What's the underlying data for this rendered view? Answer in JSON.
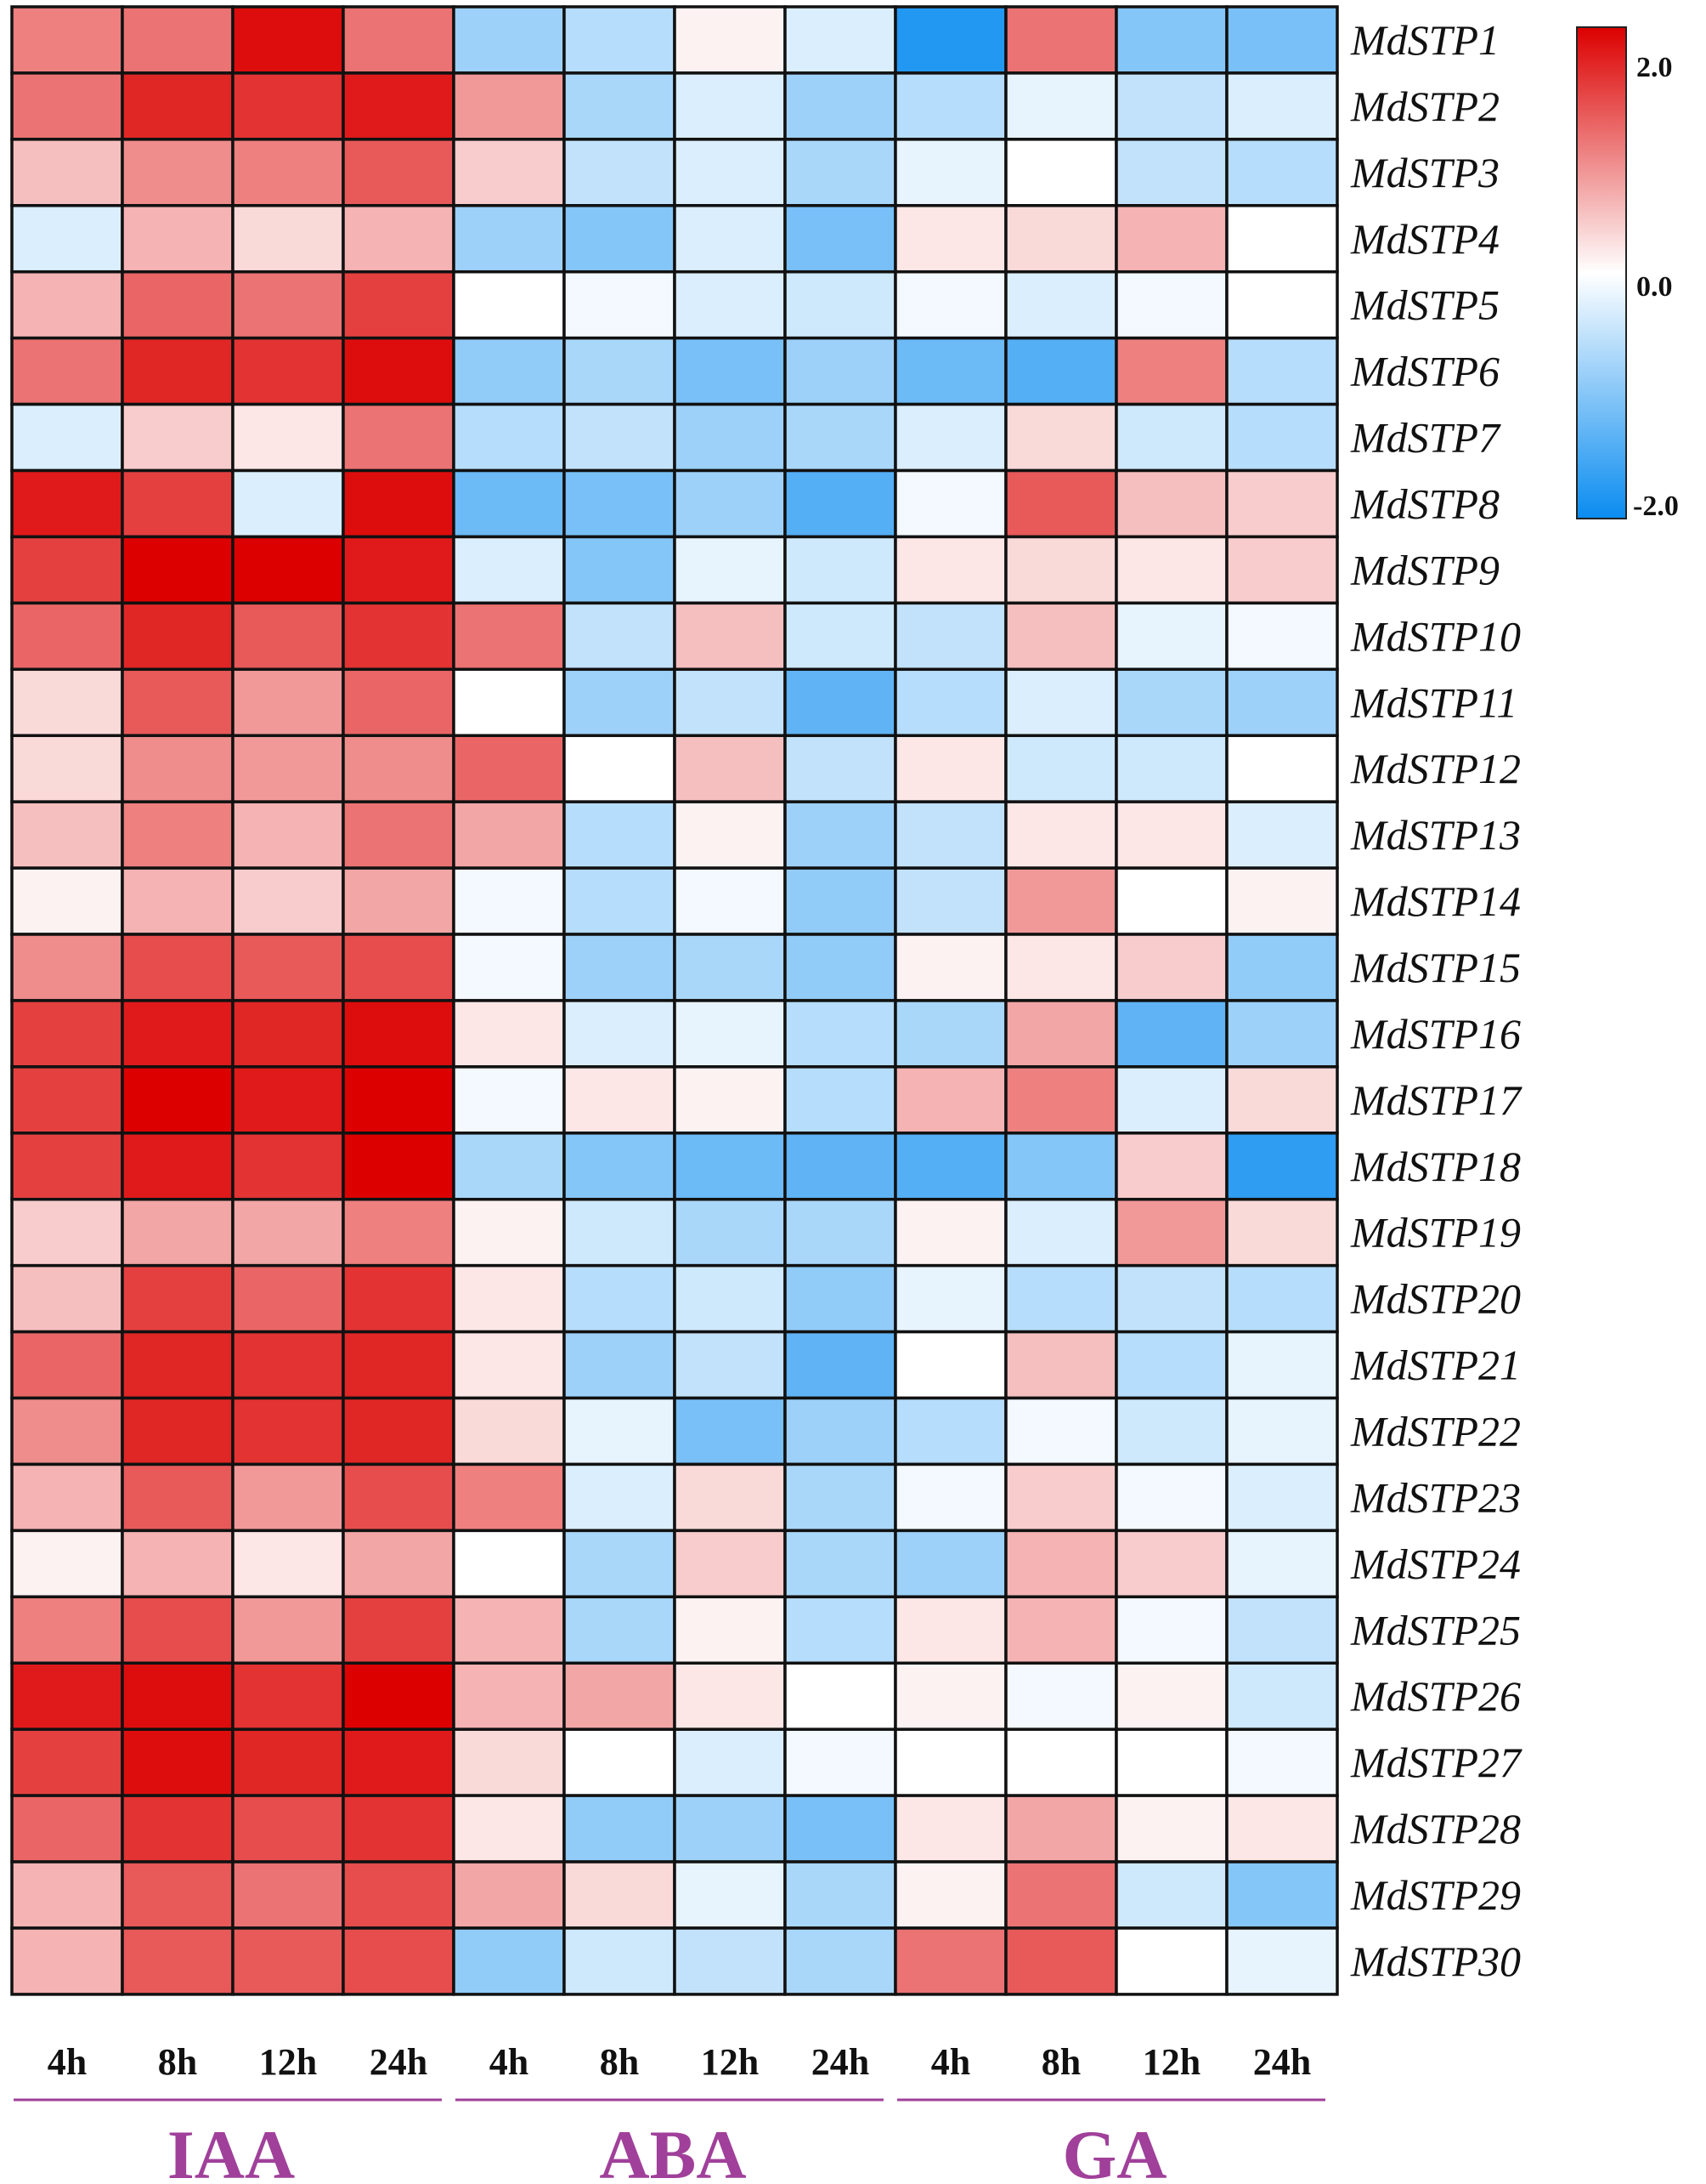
{
  "chart_data": {
    "type": "heatmap",
    "rows": [
      "MdSTP1",
      "MdSTP2",
      "MdSTP3",
      "MdSTP4",
      "MdSTP5",
      "MdSTP6",
      "MdSTP7",
      "MdSTP8",
      "MdSTP9",
      "MdSTP10",
      "MdSTP11",
      "MdSTP12",
      "MdSTP13",
      "MdSTP14",
      "MdSTP15",
      "MdSTP16",
      "MdSTP17",
      "MdSTP18",
      "MdSTP19",
      "MdSTP20",
      "MdSTP21",
      "MdSTP22",
      "MdSTP23",
      "MdSTP24",
      "MdSTP25",
      "MdSTP26",
      "MdSTP27",
      "MdSTP28",
      "MdSTP29",
      "MdSTP30"
    ],
    "columns": [
      "4h",
      "8h",
      "12h",
      "24h",
      "4h",
      "8h",
      "12h",
      "24h",
      "4h",
      "8h",
      "12h",
      "24h"
    ],
    "groups": [
      {
        "name": "IAA",
        "span": 4
      },
      {
        "name": "ABA",
        "span": 4
      },
      {
        "name": "GA",
        "span": 4
      }
    ],
    "values": [
      [
        1.0,
        1.1,
        1.9,
        1.1,
        -0.8,
        -0.6,
        0.1,
        -0.3,
        -1.8,
        1.1,
        -1.0,
        -1.1
      ],
      [
        1.1,
        1.7,
        1.6,
        1.8,
        0.8,
        -0.7,
        -0.3,
        -0.8,
        -0.6,
        -0.2,
        -0.5,
        -0.3
      ],
      [
        0.5,
        0.9,
        1.0,
        1.3,
        0.4,
        -0.5,
        -0.3,
        -0.7,
        -0.2,
        0.0,
        -0.5,
        -0.6
      ],
      [
        -0.3,
        0.6,
        0.3,
        0.6,
        -0.8,
        -1.0,
        -0.3,
        -1.1,
        0.2,
        0.3,
        0.6,
        0.0
      ],
      [
        0.6,
        1.2,
        1.1,
        1.5,
        0.0,
        -0.1,
        -0.3,
        -0.4,
        -0.1,
        -0.3,
        -0.1,
        0.0
      ],
      [
        1.1,
        1.7,
        1.6,
        1.9,
        -0.9,
        -0.7,
        -1.1,
        -0.8,
        -1.2,
        -1.4,
        1.0,
        -0.6
      ],
      [
        -0.3,
        0.4,
        0.2,
        1.1,
        -0.6,
        -0.5,
        -0.8,
        -0.7,
        -0.3,
        0.3,
        -0.4,
        -0.6
      ],
      [
        1.8,
        1.5,
        -0.3,
        1.9,
        -1.2,
        -1.1,
        -0.8,
        -1.4,
        -0.1,
        1.3,
        0.5,
        0.4
      ],
      [
        1.5,
        2.0,
        2.0,
        1.8,
        -0.3,
        -1.0,
        -0.2,
        -0.4,
        0.2,
        0.3,
        0.2,
        0.4
      ],
      [
        1.2,
        1.7,
        1.3,
        1.6,
        1.1,
        -0.5,
        0.5,
        -0.4,
        -0.5,
        0.5,
        -0.2,
        -0.1
      ],
      [
        0.3,
        1.3,
        0.8,
        1.2,
        0.0,
        -0.8,
        -0.5,
        -1.3,
        -0.6,
        -0.3,
        -0.7,
        -0.8
      ],
      [
        0.3,
        0.9,
        0.8,
        0.9,
        1.2,
        0.0,
        0.5,
        -0.5,
        0.2,
        -0.4,
        -0.4,
        0.0
      ],
      [
        0.5,
        1.0,
        0.6,
        1.1,
        0.7,
        -0.6,
        0.1,
        -0.8,
        -0.5,
        0.2,
        0.2,
        -0.3
      ],
      [
        0.1,
        0.6,
        0.4,
        0.7,
        -0.1,
        -0.6,
        -0.1,
        -0.9,
        -0.5,
        0.8,
        0.0,
        0.1
      ],
      [
        0.9,
        1.4,
        1.3,
        1.4,
        -0.1,
        -0.8,
        -0.7,
        -0.9,
        0.1,
        0.2,
        0.4,
        -0.9
      ],
      [
        1.5,
        1.8,
        1.7,
        1.9,
        0.2,
        -0.3,
        -0.2,
        -0.6,
        -0.7,
        0.7,
        -1.3,
        -0.8
      ],
      [
        1.5,
        2.0,
        1.8,
        2.0,
        -0.1,
        0.2,
        0.1,
        -0.6,
        0.6,
        1.0,
        -0.3,
        0.3
      ],
      [
        1.5,
        1.8,
        1.6,
        2.0,
        -0.7,
        -1.0,
        -1.2,
        -1.3,
        -1.4,
        -1.0,
        0.4,
        -1.7
      ],
      [
        0.4,
        0.7,
        0.7,
        1.0,
        0.1,
        -0.4,
        -0.7,
        -0.7,
        0.1,
        -0.3,
        0.8,
        0.3
      ],
      [
        0.5,
        1.5,
        1.2,
        1.6,
        0.2,
        -0.6,
        -0.4,
        -0.9,
        -0.2,
        -0.6,
        -0.5,
        -0.6
      ],
      [
        1.2,
        1.7,
        1.6,
        1.7,
        0.2,
        -0.8,
        -0.5,
        -1.3,
        0.0,
        0.5,
        -0.6,
        -0.2
      ],
      [
        0.9,
        1.7,
        1.6,
        1.7,
        0.3,
        -0.2,
        -1.1,
        -0.8,
        -0.6,
        -0.1,
        -0.4,
        -0.2
      ],
      [
        0.6,
        1.3,
        0.8,
        1.4,
        1.0,
        -0.3,
        0.3,
        -0.7,
        -0.1,
        0.4,
        -0.1,
        -0.3
      ],
      [
        0.1,
        0.6,
        0.2,
        0.7,
        0.0,
        -0.7,
        0.4,
        -0.7,
        -0.8,
        0.6,
        0.4,
        -0.2
      ],
      [
        1.0,
        1.4,
        0.8,
        1.5,
        0.6,
        -0.7,
        0.1,
        -0.6,
        0.2,
        0.6,
        -0.1,
        -0.5
      ],
      [
        1.8,
        1.9,
        1.6,
        2.0,
        0.6,
        0.7,
        0.2,
        0.0,
        0.1,
        -0.1,
        0.1,
        -0.4
      ],
      [
        1.5,
        1.9,
        1.7,
        1.8,
        0.3,
        0.0,
        -0.3,
        -0.1,
        0.0,
        0.0,
        0.0,
        -0.1
      ],
      [
        1.2,
        1.6,
        1.4,
        1.6,
        0.2,
        -0.9,
        -0.8,
        -1.1,
        0.2,
        0.7,
        0.1,
        0.2
      ],
      [
        0.6,
        1.3,
        1.1,
        1.4,
        0.7,
        0.3,
        -0.2,
        -0.7,
        0.1,
        1.1,
        -0.4,
        -1.0
      ],
      [
        0.6,
        1.3,
        1.3,
        1.4,
        -0.9,
        -0.4,
        -0.5,
        -0.7,
        1.1,
        1.3,
        0.0,
        -0.2
      ]
    ],
    "colorscale": {
      "min": -2.0,
      "mid": 0.0,
      "max": 2.0,
      "low_color": "#0a8cf0",
      "mid_color": "#ffffff",
      "high_color": "#dc0000"
    },
    "colorbar_labels": [
      "2.0",
      "0.0",
      "-2.0"
    ],
    "group_label_color": "#a0409a",
    "legend_position": "top-right"
  }
}
